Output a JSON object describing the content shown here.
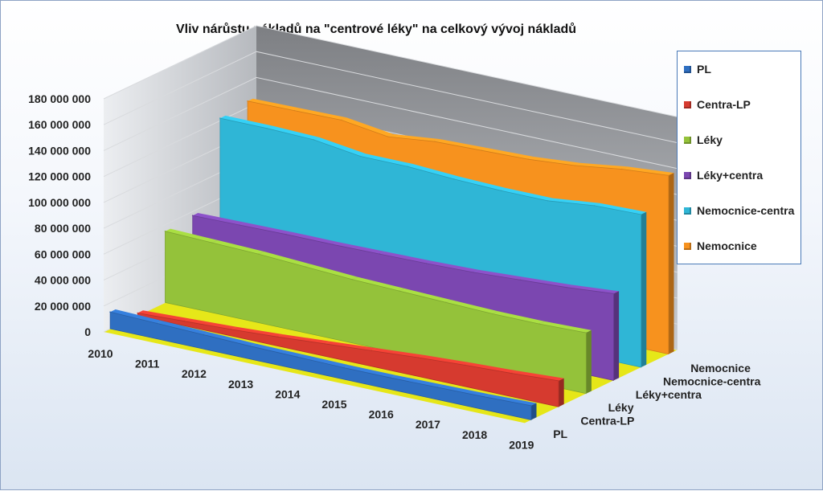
{
  "chart_data": {
    "type": "area",
    "title": "Vliv nárůstu nákladů na \"centrové léky\" na celkový vývoj nákladů",
    "categories": [
      "2010",
      "2011",
      "2012",
      "2013",
      "2014",
      "2015",
      "2016",
      "2017",
      "2018",
      "2019"
    ],
    "y_ticks": [
      "0",
      "20 000 000",
      "40 000 000",
      "60 000 000",
      "80 000 000",
      "100 000 000",
      "120 000 000",
      "140 000 000",
      "160 000 000",
      "180 000 000"
    ],
    "ylim": [
      0,
      180000000
    ],
    "grid": true,
    "legend_position": "right",
    "series": [
      {
        "name": "PL",
        "color": "#2f6fc1",
        "values": [
          13000000,
          12000000,
          11000000,
          10000000,
          9500000,
          9000000,
          9000000,
          9500000,
          10000000,
          11000000
        ]
      },
      {
        "name": "Centra-LP",
        "color": "#d63a2f",
        "values": [
          2000000,
          3500000,
          5000000,
          7000000,
          9500000,
          12000000,
          14500000,
          16500000,
          18000000,
          20000000
        ]
      },
      {
        "name": "Léky",
        "color": "#94c23a",
        "values": [
          55000000,
          54000000,
          53000000,
          51000000,
          49000000,
          48000000,
          47000000,
          46000000,
          46000000,
          47000000
        ]
      },
      {
        "name": "Léky+centra",
        "color": "#7b47b0",
        "values": [
          57000000,
          57500000,
          58000000,
          58000000,
          58500000,
          59000000,
          60000000,
          62000000,
          64000000,
          67000000
        ]
      },
      {
        "name": "Nemocnice-centra",
        "color": "#2fb6d6",
        "values": [
          122000000,
          122000000,
          121000000,
          116000000,
          116000000,
          114000000,
          113000000,
          113000000,
          117000000,
          118000000
        ]
      },
      {
        "name": "Nemocnice",
        "color": "#f7921e",
        "values": [
          125000000,
          125500000,
          126000000,
          121000000,
          125000000,
          126000000,
          127000000,
          130000000,
          135000000,
          138000000
        ]
      }
    ]
  }
}
